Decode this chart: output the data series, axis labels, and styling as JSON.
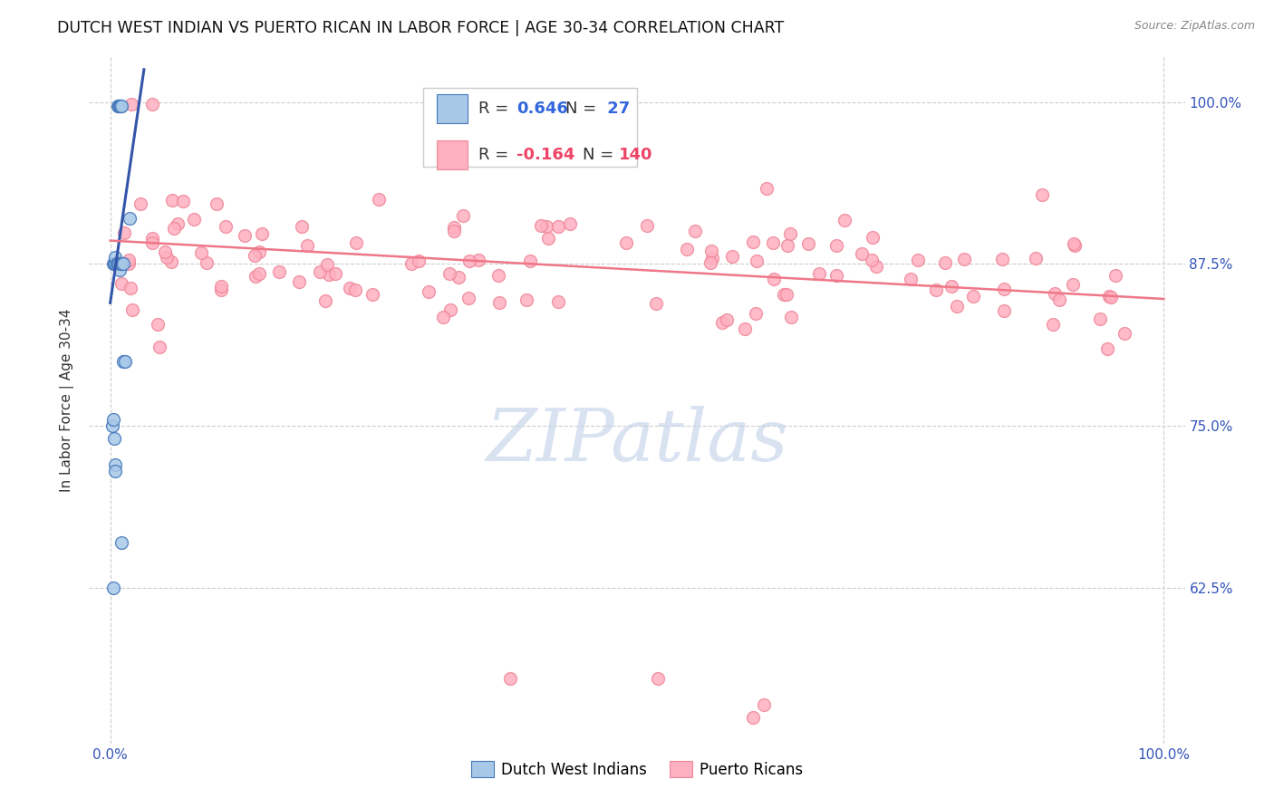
{
  "title": "DUTCH WEST INDIAN VS PUERTO RICAN IN LABOR FORCE | AGE 30-34 CORRELATION CHART",
  "source": "Source: ZipAtlas.com",
  "ylabel": "In Labor Force | Age 30-34",
  "xlim": [
    -0.02,
    1.02
  ],
  "ylim": [
    0.505,
    1.035
  ],
  "x_tick_positions": [
    0.0,
    1.0
  ],
  "x_tick_labels": [
    "0.0%",
    "100.0%"
  ],
  "y_tick_positions": [
    0.625,
    0.75,
    0.875,
    1.0
  ],
  "y_tick_labels": [
    "62.5%",
    "75.0%",
    "87.5%",
    "100.0%"
  ],
  "legend_blue_r": "0.646",
  "legend_blue_n": "27",
  "legend_pink_r": "-0.164",
  "legend_pink_n": "140",
  "blue_fill": "#A8C8E8",
  "blue_edge": "#4477BB",
  "pink_fill": "#FFB0C0",
  "pink_edge": "#EE8899",
  "blue_line_color": "#3355AA",
  "pink_line_color": "#EE7788",
  "watermark": "ZIPatlas",
  "watermark_color": "#C0D0E8",
  "background_color": "#FFFFFF",
  "grid_color": "#CCCCCC",
  "title_color": "#111111",
  "source_color": "#888888",
  "tick_color": "#3355BB",
  "ylabel_color": "#333333",
  "title_fontsize": 12.5,
  "source_fontsize": 9,
  "tick_fontsize": 11,
  "ylabel_fontsize": 11,
  "legend_fontsize": 13,
  "marker_size": 100,
  "blue_trend_x": [
    0.0,
    0.032
  ],
  "blue_trend_y": [
    0.845,
    1.025
  ],
  "pink_trend_x": [
    0.0,
    1.0
  ],
  "pink_trend_y": [
    0.893,
    0.848
  ]
}
